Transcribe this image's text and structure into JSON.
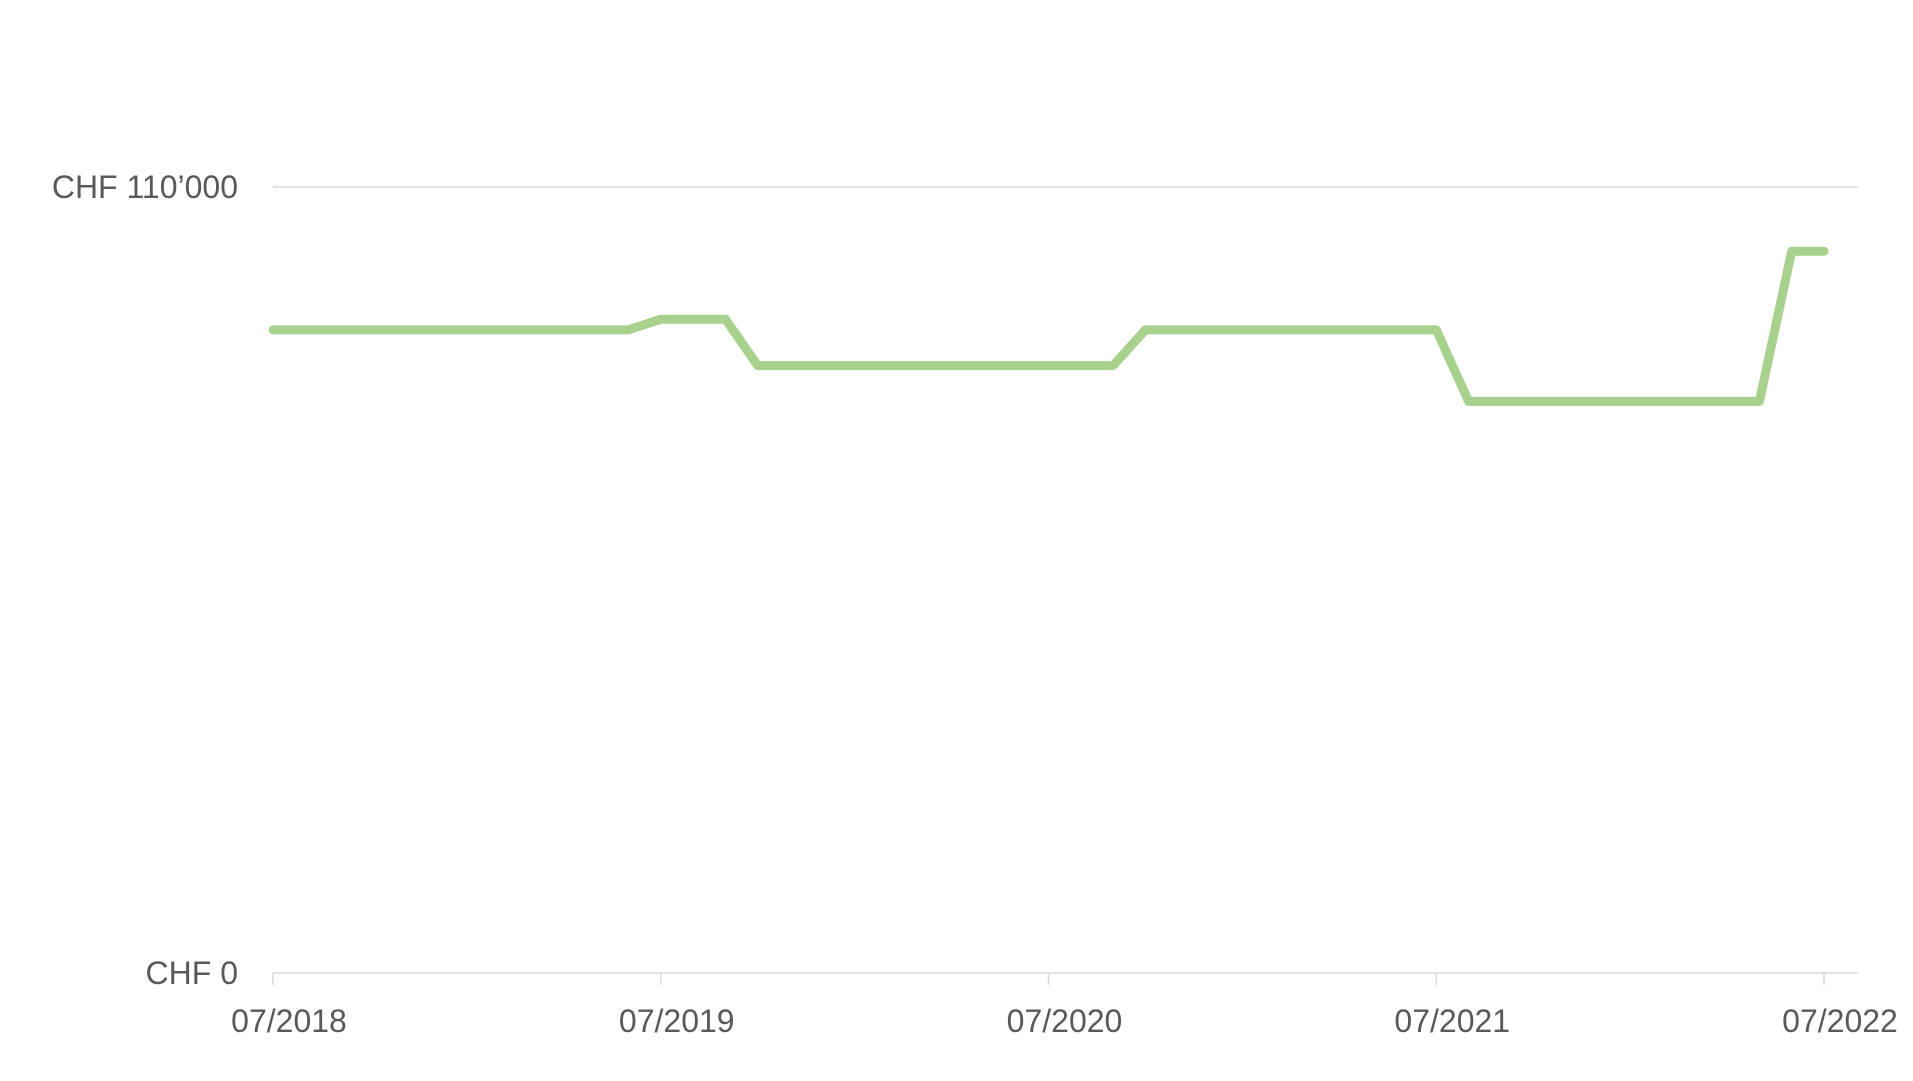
{
  "chart_data": {
    "type": "line",
    "title": "",
    "xlabel": "",
    "ylabel": "",
    "ylim": [
      0,
      110000
    ],
    "y_ticks": [
      {
        "value": 0,
        "label": "CHF 0"
      },
      {
        "value": 110000,
        "label": "CHF 110’000"
      }
    ],
    "x_range": [
      "2018-07",
      "2022-07"
    ],
    "x_ticks": [
      {
        "value": "2018-07",
        "label": "07/2018"
      },
      {
        "value": "2019-07",
        "label": "07/2019"
      },
      {
        "value": "2020-07",
        "label": "07/2020"
      },
      {
        "value": "2021-07",
        "label": "07/2021"
      },
      {
        "value": "2022-07",
        "label": "07/2022"
      }
    ],
    "grid": {
      "horizontal": true,
      "vertical": false
    },
    "legend": "none",
    "series": [
      {
        "color": "#a9d18e",
        "points": [
          {
            "x": "2018-07",
            "y": 90000
          },
          {
            "x": "2019-06",
            "y": 90000
          },
          {
            "x": "2019-07",
            "y": 91500
          },
          {
            "x": "2019-09",
            "y": 91500
          },
          {
            "x": "2019-10",
            "y": 85000
          },
          {
            "x": "2020-09",
            "y": 85000
          },
          {
            "x": "2020-10",
            "y": 90000
          },
          {
            "x": "2021-07",
            "y": 90000
          },
          {
            "x": "2021-08",
            "y": 80000
          },
          {
            "x": "2022-05",
            "y": 80000
          },
          {
            "x": "2022-06",
            "y": 101000
          },
          {
            "x": "2022-07",
            "y": 101000
          }
        ]
      }
    ]
  }
}
